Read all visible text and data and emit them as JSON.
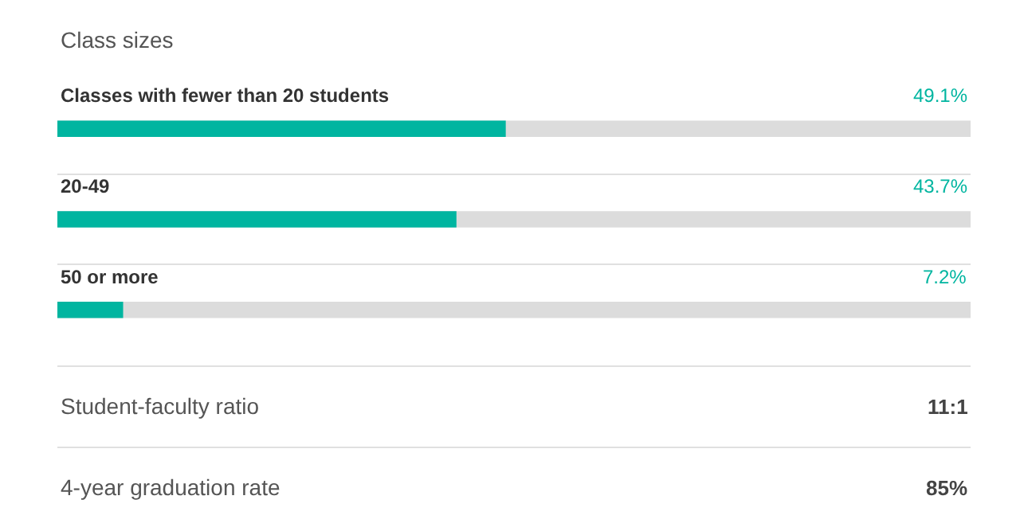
{
  "chart_data": [
    {
      "type": "bar",
      "orientation": "horizontal",
      "title": "Class sizes",
      "categories": [
        "Classes with fewer than 20 students",
        "20-49",
        "50 or more"
      ],
      "values": [
        49.1,
        43.7,
        7.2
      ],
      "value_labels": [
        "49.1%",
        "43.7%",
        "7.2%"
      ],
      "color": "#00b5a0",
      "xlim": [
        0,
        100
      ],
      "grid": "y",
      "legend": false
    },
    {
      "type": "other",
      "annotations": [
        "Student-faculty ratio",
        "11:1",
        "4-year graduation rate",
        "85%"
      ]
    }
  ]
}
